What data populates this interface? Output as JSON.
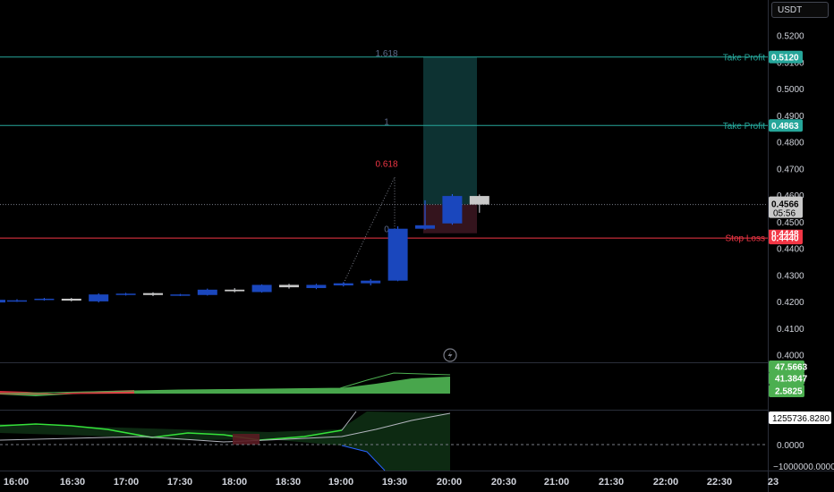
{
  "currency_button": "USDT",
  "chart_data": {
    "type": "candlestick",
    "price_axis": {
      "ticks": [
        "0.5200",
        "0.5100",
        "0.5000",
        "0.4900",
        "0.4800",
        "0.4700",
        "0.4600",
        "0.4500",
        "0.4400",
        "0.4300",
        "0.4200",
        "0.4100",
        "0.4000"
      ],
      "tick_values": [
        0.52,
        0.51,
        0.5,
        0.49,
        0.48,
        0.47,
        0.46,
        0.45,
        0.44,
        0.43,
        0.42,
        0.41,
        0.4
      ],
      "range": [
        0.3987,
        0.5286
      ]
    },
    "time_axis": {
      "ticks": [
        "16:00",
        "16:30",
        "17:00",
        "17:30",
        "18:00",
        "18:30",
        "19:00",
        "19:30",
        "20:00",
        "20:30",
        "21:00",
        "21:30",
        "22:00",
        "22:30",
        "23"
      ],
      "bold_ticks": [
        "17:00",
        "18:00",
        "19:00",
        "20:00",
        "21:00",
        "22:00"
      ]
    },
    "candles": [
      {
        "o": 0.4204,
        "h": 0.421,
        "l": 0.42,
        "c": 0.4206
      },
      {
        "o": 0.4208,
        "h": 0.4215,
        "l": 0.4205,
        "c": 0.4212
      },
      {
        "o": 0.4212,
        "h": 0.4215,
        "l": 0.4202,
        "c": 0.4205
      },
      {
        "o": 0.4202,
        "h": 0.4232,
        "l": 0.4198,
        "c": 0.4228
      },
      {
        "o": 0.4228,
        "h": 0.4234,
        "l": 0.4224,
        "c": 0.4231
      },
      {
        "o": 0.4233,
        "h": 0.4236,
        "l": 0.4222,
        "c": 0.4226
      },
      {
        "o": 0.4226,
        "h": 0.423,
        "l": 0.4222,
        "c": 0.4228
      },
      {
        "o": 0.4226,
        "h": 0.425,
        "l": 0.4224,
        "c": 0.4246
      },
      {
        "o": 0.4246,
        "h": 0.4252,
        "l": 0.4236,
        "c": 0.424
      },
      {
        "o": 0.4237,
        "h": 0.4266,
        "l": 0.4235,
        "c": 0.4264
      },
      {
        "o": 0.4264,
        "h": 0.4268,
        "l": 0.425,
        "c": 0.4255
      },
      {
        "o": 0.4252,
        "h": 0.4268,
        "l": 0.4248,
        "c": 0.4264
      },
      {
        "o": 0.4262,
        "h": 0.4274,
        "l": 0.4258,
        "c": 0.427
      },
      {
        "o": 0.427,
        "h": 0.4286,
        "l": 0.4262,
        "c": 0.428
      },
      {
        "o": 0.428,
        "h": 0.4484,
        "l": 0.4278,
        "c": 0.4475
      },
      {
        "o": 0.4475,
        "h": 0.4582,
        "l": 0.4472,
        "c": 0.4488
      },
      {
        "o": 0.4495,
        "h": 0.4605,
        "l": 0.449,
        "c": 0.4598
      },
      {
        "o": 0.4598,
        "h": 0.4604,
        "l": 0.4535,
        "c": 0.4566
      }
    ],
    "price_lines": [
      {
        "label": "Take Profit",
        "value": "0.5120",
        "price": 0.512,
        "color": "#26a69a"
      },
      {
        "label": "Take Profit",
        "value": "0.4863",
        "price": 0.4863,
        "color": "#26a69a"
      },
      {
        "label": "Stop Loss",
        "value": "0.4440",
        "price": 0.444,
        "color": "#f23645"
      }
    ],
    "current_price": {
      "value": "0.4566",
      "countdown": "05:56",
      "price": 0.4566
    },
    "hidden_badge": {
      "value": "0.4448",
      "price": 0.4448
    },
    "fib": {
      "levels": [
        {
          "label": "1.618",
          "price": 0.512
        },
        {
          "label": "1",
          "price": 0.4863
        },
        {
          "label": "0.618",
          "price": 0.4705
        },
        {
          "label": "0",
          "price": 0.4458
        }
      ]
    },
    "indicator_1": {
      "values": [
        "47.5663",
        "41.3847",
        "2.5825"
      ],
      "colors": [
        "#4caf50",
        "#4caf50",
        "#4caf50"
      ]
    },
    "indicator_2": {
      "values": [
        "1255736.8280",
        "0.0000",
        "−1000000.0000"
      ],
      "ticks": [
        1255736.828,
        0,
        -1000000
      ]
    }
  }
}
